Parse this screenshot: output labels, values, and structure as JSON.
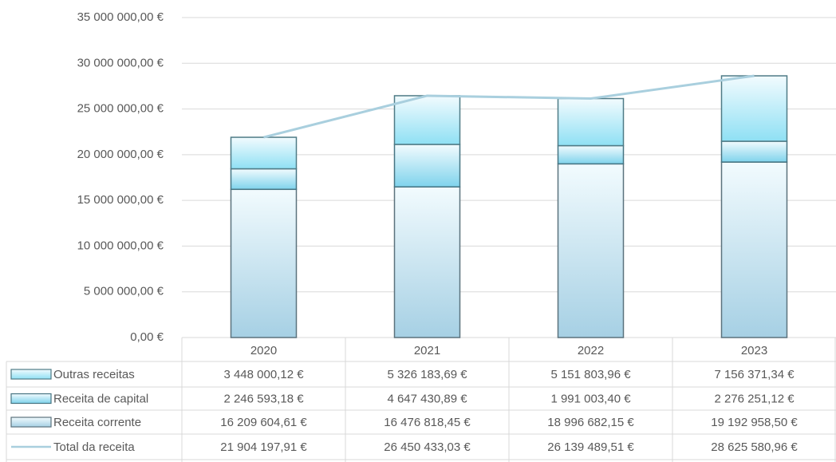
{
  "chart_data": {
    "type": "bar",
    "stacked": true,
    "categories": [
      "2020",
      "2021",
      "2022",
      "2023"
    ],
    "series": [
      {
        "name": "Outras receitas",
        "color": "#8fe0f4",
        "values": [
          3448000.12,
          5326183.69,
          5151803.96,
          7156371.34
        ],
        "value_labels": [
          "3 448 000,12 €",
          "5 326 183,69 €",
          "5 151 803,96 €",
          "7 156 371,34 €"
        ]
      },
      {
        "name": "Receita de capital",
        "color": "#7fd3ec",
        "values": [
          2246593.18,
          4647430.89,
          1991003.4,
          2276251.12
        ],
        "value_labels": [
          "2 246 593,18 €",
          "4 647 430,89 €",
          "1 991 003,40 €",
          "2 276 251,12 €"
        ]
      },
      {
        "name": "Receita corrente",
        "color": "#a6d0e4",
        "values": [
          16209604.61,
          16476818.45,
          18996682.15,
          19192958.5
        ],
        "value_labels": [
          "16 209 604,61 €",
          "16 476 818,45 €",
          "18 996 682,15 €",
          "19 192 958,50 €"
        ]
      },
      {
        "name": "Total da receita",
        "type": "line",
        "color": "#a9cfde",
        "values": [
          21904197.91,
          26450433.03,
          26139489.51,
          28625580.96
        ],
        "value_labels": [
          "21 904 197,91 €",
          "26 450 433,03 €",
          "26 139 489,51 €",
          "28 625 580,96 €"
        ]
      }
    ],
    "ylim": [
      0,
      35000000
    ],
    "yticks": [
      {
        "value": 0,
        "label": "0,00 €"
      },
      {
        "value": 5000000,
        "label": "5 000 000,00 €"
      },
      {
        "value": 10000000,
        "label": "10 000 000,00 €"
      },
      {
        "value": 15000000,
        "label": "15 000 000,00 €"
      },
      {
        "value": 20000000,
        "label": "20 000 000,00 €"
      },
      {
        "value": 25000000,
        "label": "25 000 000,00 €"
      },
      {
        "value": 30000000,
        "label": "30 000 000,00 €"
      },
      {
        "value": 35000000,
        "label": "35 000 000,00 €"
      }
    ],
    "grid": true,
    "data_table": true
  }
}
